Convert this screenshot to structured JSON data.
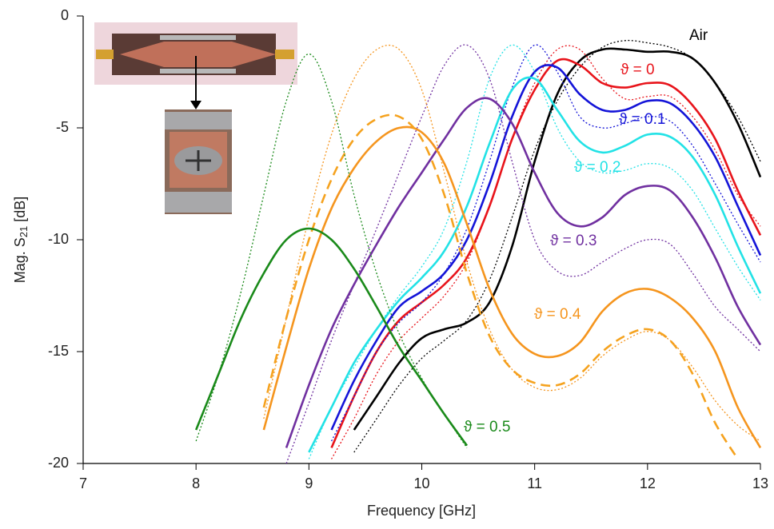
{
  "chart_data": {
    "type": "line",
    "x_label": "Frequency [GHz]",
    "y_label": {
      "text": "Mag. S",
      "subscript": "21",
      "suffix": " [dB]"
    },
    "xlim": [
      7,
      13
    ],
    "xticks": [
      7,
      8,
      9,
      10,
      11,
      12,
      13
    ],
    "ylim": [
      -20,
      0
    ],
    "yticks": [
      0,
      -5,
      -10,
      -15,
      -20
    ],
    "x": [
      7.0,
      7.2,
      7.4,
      7.6,
      7.8,
      8.0,
      8.2,
      8.4,
      8.6,
      8.8,
      9.0,
      9.2,
      9.4,
      9.6,
      9.8,
      10.0,
      10.2,
      10.4,
      10.6,
      10.8,
      11.0,
      11.2,
      11.4,
      11.6,
      11.8,
      12.0,
      12.2,
      12.4,
      12.6,
      12.8,
      13.0
    ],
    "series": [
      {
        "name": "Air",
        "color": "#000000",
        "style": "solid",
        "values": [
          null,
          null,
          null,
          null,
          null,
          null,
          null,
          null,
          null,
          null,
          null,
          null,
          -18.5,
          -17,
          -15.5,
          -14.4,
          -14,
          -13.7,
          -12.8,
          -10.3,
          -6.5,
          -3.5,
          -2.0,
          -1.5,
          -1.5,
          -1.6,
          -1.6,
          -1.9,
          -3.0,
          -4.8,
          -7.2
        ]
      },
      {
        "color": "#000000",
        "style": "dotted",
        "values": [
          null,
          null,
          null,
          null,
          null,
          null,
          null,
          null,
          null,
          null,
          null,
          null,
          -19.5,
          -18,
          -16.5,
          -15.3,
          -14.5,
          -13.6,
          -11.8,
          -9,
          -6,
          -3.8,
          -2.3,
          -1.4,
          -1.1,
          -1.2,
          -1.4,
          -1.9,
          -3.0,
          -4.5,
          -6.5
        ]
      },
      {
        "name": "ϑ = 0",
        "color": "#e8141b",
        "style": "solid",
        "values": [
          null,
          null,
          null,
          null,
          null,
          null,
          null,
          null,
          null,
          null,
          null,
          -19.3,
          -17,
          -15,
          -13.6,
          -12.8,
          -12,
          -10.8,
          -8.5,
          -5.5,
          -3.3,
          -2.0,
          -2.2,
          -3.0,
          -3.2,
          -3.0,
          -3.1,
          -4.0,
          -5.5,
          -7.8,
          -9.8
        ]
      },
      {
        "color": "#e8141b",
        "style": "dotted",
        "values": [
          null,
          null,
          null,
          null,
          null,
          null,
          null,
          null,
          null,
          null,
          null,
          -19.8,
          -18,
          -16,
          -14.5,
          -13.5,
          -12.5,
          -11,
          -8.5,
          -5.5,
          -3,
          -1.5,
          -1.5,
          -2.8,
          -3.7,
          -3.6,
          -3.6,
          -4.5,
          -6,
          -8,
          -9.4
        ]
      },
      {
        "name": "ϑ = 0.1",
        "color": "#1414d8",
        "style": "solid",
        "values": [
          null,
          null,
          null,
          null,
          null,
          null,
          null,
          null,
          null,
          null,
          null,
          -18.5,
          -16.3,
          -14.5,
          -13,
          -12.3,
          -11.5,
          -10,
          -7.5,
          -4.5,
          -2.5,
          -2.3,
          -3.5,
          -4.2,
          -4.2,
          -3.8,
          -3.9,
          -4.8,
          -6.3,
          -8.5,
          -10.7
        ]
      },
      {
        "color": "#1414d8",
        "style": "dotted",
        "values": [
          null,
          null,
          null,
          null,
          null,
          null,
          null,
          null,
          null,
          null,
          null,
          -19,
          -17,
          -15,
          -13.7,
          -12.8,
          -11.5,
          -9.5,
          -6.5,
          -3.2,
          -1.3,
          -2.5,
          -4.5,
          -5.0,
          -4.8,
          -4.5,
          -4.7,
          -5.8,
          -7.5,
          -9.3,
          -11
        ]
      },
      {
        "name": "ϑ = 0.2",
        "color": "#22e2e6",
        "style": "solid",
        "values": [
          null,
          null,
          null,
          null,
          null,
          null,
          null,
          null,
          null,
          null,
          -19.5,
          -17.5,
          -15.5,
          -14,
          -12.7,
          -11.7,
          -10.5,
          -8.5,
          -5.7,
          -3.3,
          -2.8,
          -4.2,
          -5.6,
          -6.1,
          -5.8,
          -5.3,
          -5.4,
          -6.3,
          -8,
          -10.3,
          -12.4
        ]
      },
      {
        "color": "#22e2e6",
        "style": "dotted",
        "values": [
          null,
          null,
          null,
          null,
          null,
          null,
          null,
          null,
          null,
          null,
          -19.8,
          -17.5,
          -15.7,
          -14,
          -12.5,
          -11.2,
          -9.5,
          -6.5,
          -2.8,
          -1.3,
          -2.5,
          -5,
          -6.5,
          -7,
          -6.9,
          -6.6,
          -6.8,
          -7.8,
          -9.5,
          -11.2,
          -12.7
        ]
      },
      {
        "name": "ϑ = 0.3",
        "color": "#7030a0",
        "style": "solid",
        "values": [
          null,
          null,
          null,
          null,
          null,
          null,
          null,
          null,
          null,
          -19.3,
          -16.5,
          -14,
          -12,
          -10.2,
          -8.5,
          -7,
          -5.5,
          -4.1,
          -3.7,
          -4.8,
          -7,
          -8.8,
          -9.4,
          -9.0,
          -8.0,
          -7.6,
          -7.8,
          -9,
          -10.8,
          -13,
          -14.7
        ]
      },
      {
        "color": "#7030a0",
        "style": "dotted",
        "values": [
          null,
          null,
          null,
          null,
          null,
          null,
          null,
          null,
          null,
          -20,
          -17.3,
          -14.5,
          -12,
          -9.5,
          -7,
          -4.5,
          -2.2,
          -1.3,
          -2.8,
          -6.5,
          -10,
          -11.4,
          -11.6,
          -11,
          -10.4,
          -10.0,
          -10.2,
          -11.5,
          -13,
          -14,
          -15
        ]
      },
      {
        "name": "ϑ = 0.4",
        "color": "#f5951e",
        "style": "solid",
        "values": [
          null,
          null,
          null,
          null,
          null,
          null,
          null,
          null,
          -18.5,
          -14.8,
          -11.3,
          -8.6,
          -6.8,
          -5.6,
          -5.0,
          -5.2,
          -6.6,
          -9.3,
          -12.2,
          -14.2,
          -15.1,
          -15.2,
          -14.6,
          -13.2,
          -12.4,
          -12.2,
          -12.6,
          -13.5,
          -15,
          -17.5,
          -19.3
        ]
      },
      {
        "color": "#f5a21e",
        "style": "dashed",
        "values": [
          null,
          null,
          null,
          null,
          null,
          null,
          null,
          null,
          -17.5,
          -13.5,
          -10,
          -7.3,
          -5.5,
          -4.6,
          -4.5,
          -5.5,
          -8,
          -11.5,
          -14.3,
          -15.8,
          -16.4,
          -16.5,
          -16,
          -15,
          -14.3,
          -14.0,
          -14.5,
          -16,
          -18.2,
          -19.8,
          null
        ]
      },
      {
        "color": "#f5951e",
        "style": "dotted",
        "values": [
          null,
          null,
          null,
          null,
          null,
          null,
          null,
          null,
          -18,
          -13.5,
          -9,
          -5.3,
          -2.8,
          -1.5,
          -1.5,
          -3.3,
          -7,
          -11,
          -14,
          -15.8,
          -16.6,
          -16.7,
          -16.2,
          -15.2,
          -14.5,
          -14.1,
          -14.5,
          -15.7,
          -17.2,
          -18.3,
          -19
        ]
      },
      {
        "name": "ϑ = 0.5",
        "color": "#1a8a1a",
        "style": "solid",
        "values": [
          null,
          null,
          null,
          null,
          null,
          -18.5,
          -16,
          -13.5,
          -11.5,
          -10,
          -9.5,
          -10,
          -11.3,
          -13,
          -14.8,
          -16.3,
          -17.8,
          -19.2,
          null,
          null,
          null,
          null,
          null,
          null,
          null,
          null,
          null,
          null,
          null,
          null,
          null
        ]
      },
      {
        "color": "#1a8a1a",
        "style": "dotted",
        "values": [
          null,
          null,
          null,
          null,
          null,
          -19,
          -16,
          -12.3,
          -8,
          -3.8,
          -1.7,
          -3.8,
          -8,
          -11.5,
          -14.2,
          -16.2,
          -17.8,
          -19.3,
          null,
          null,
          null,
          null,
          null,
          null,
          null,
          null,
          null,
          null,
          null,
          null,
          null
        ]
      }
    ]
  }
}
